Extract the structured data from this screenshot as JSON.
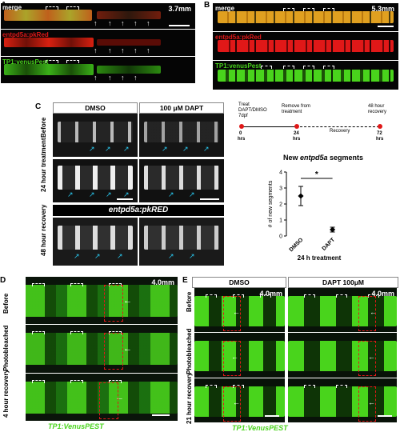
{
  "panels": {
    "A": {
      "letter": "A",
      "stage": "3.7mm",
      "rows": [
        "merge",
        "entpd5a:pkRed",
        "TP1:venusPest"
      ]
    },
    "B": {
      "letter": "B",
      "stage": "5.3mm",
      "rows": [
        "merge",
        "entpd5a:pkRed",
        "TP1:venusPest"
      ]
    },
    "C": {
      "letter": "C",
      "conditions": [
        "DMSO",
        "100 μM DAPT"
      ],
      "rows": [
        "Before",
        "24 hour treatment",
        "48 hour recovery"
      ],
      "reporter": "entpd5a:pkRED",
      "timeline": {
        "points": [
          {
            "label": "Treat DAPT/DMSO 7dpf",
            "time": "0",
            "unit": "hrs"
          },
          {
            "label": "Remove from treatment",
            "time": "24",
            "unit": "hrs"
          },
          {
            "label": "48 hour recovery",
            "time": "72",
            "unit": "hrs"
          }
        ],
        "phase": "Recovery"
      }
    },
    "D": {
      "letter": "D",
      "stage": "4.0mm",
      "rows": [
        "Before",
        "Photobleached",
        "4 hour recovery"
      ],
      "reporter": "TP1:VenusPEST"
    },
    "E": {
      "letter": "E",
      "stage": "4.0mm",
      "conditions": [
        "DMSO",
        "DAPT 100μM"
      ],
      "rows": [
        "Before",
        "Photobleached",
        "21 hour recovery"
      ],
      "reporter": "TP1:VenusPEST"
    }
  },
  "chart_data": {
    "type": "scatter",
    "title_prefix": "New ",
    "title_italic": "entpd5a",
    "title_suffix": " segments",
    "categories": [
      "DMSO",
      "DAPT"
    ],
    "values": [
      2.5,
      0.4
    ],
    "errors": [
      0.6,
      0.15
    ],
    "ylabel": "# of new segments",
    "xlabel": "24 h treatment",
    "ylim": [
      0,
      4
    ],
    "yticks": [
      0,
      1,
      2,
      3,
      4
    ],
    "significance": "*"
  },
  "colors": {
    "red": "#e01818",
    "green": "#49d41c",
    "yellow": "#d8a020",
    "cyan": "#29c7ee"
  }
}
